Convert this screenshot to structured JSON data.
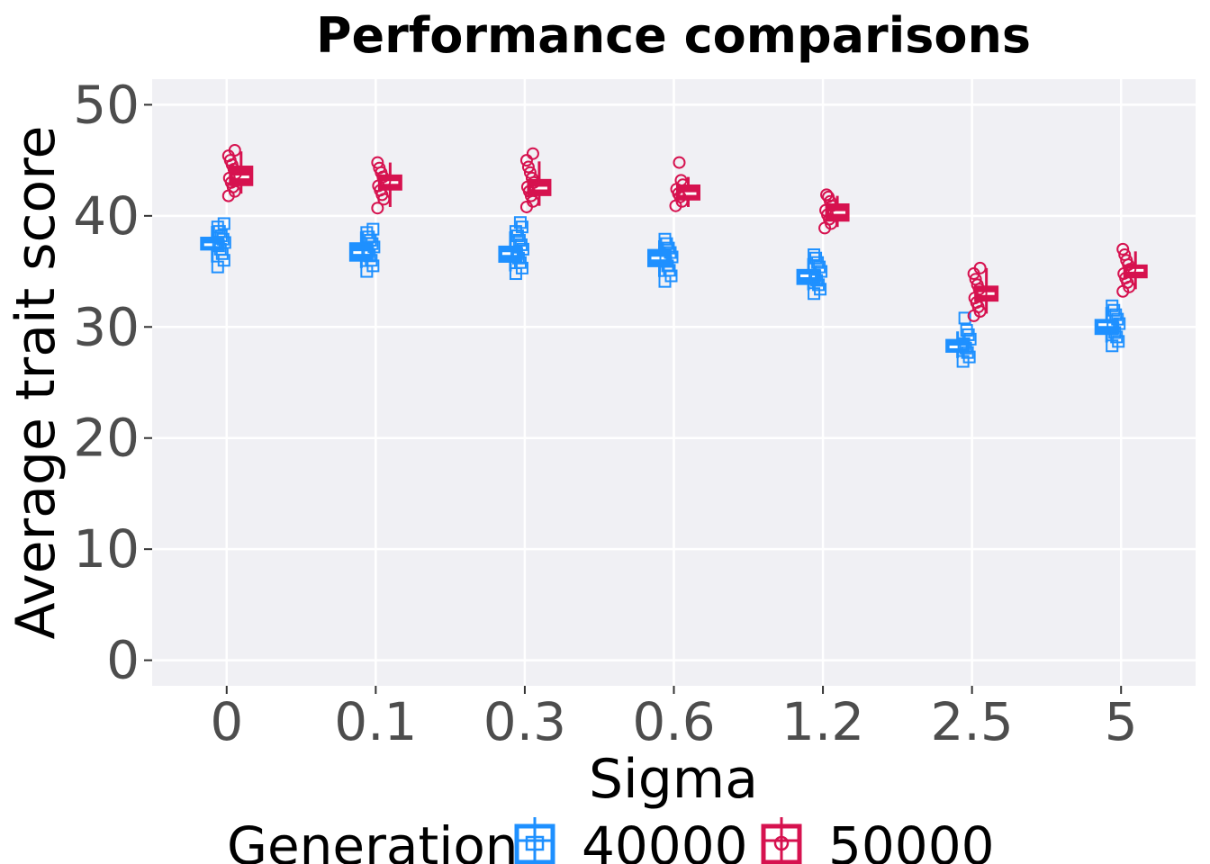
{
  "chart_data": {
    "type": "box",
    "title": "Performance comparisons",
    "xlabel": "Sigma",
    "ylabel": "Average trait score",
    "categories": [
      "0",
      "0.1",
      "0.3",
      "0.6",
      "1.2",
      "2.5",
      "5"
    ],
    "y_ticks": [
      "0",
      "10",
      "20",
      "30",
      "40",
      "50"
    ],
    "ylim": [
      -2.3,
      52.3
    ],
    "grid": true,
    "legend": {
      "title": "Generation",
      "position": "bottom",
      "entries": [
        "40000",
        "50000"
      ]
    },
    "series": [
      {
        "name": "40000",
        "color": "#1e90ff",
        "point_shape": "square",
        "boxes": [
          {
            "min": 35.8,
            "q1": 37.0,
            "median": 37.4,
            "q3": 38.0,
            "max": 39.1
          },
          {
            "min": 35.3,
            "q1": 36.0,
            "median": 36.7,
            "q3": 37.5,
            "max": 38.6
          },
          {
            "min": 35.0,
            "q1": 35.9,
            "median": 36.6,
            "q3": 37.2,
            "max": 38.6
          },
          {
            "min": 34.5,
            "q1": 35.5,
            "median": 36.2,
            "q3": 36.9,
            "max": 37.8
          },
          {
            "min": 33.3,
            "q1": 33.9,
            "median": 34.6,
            "q3": 35.1,
            "max": 36.2
          },
          {
            "min": 27.2,
            "q1": 27.8,
            "median": 28.2,
            "q3": 28.8,
            "max": 29.6
          },
          {
            "min": 28.6,
            "q1": 29.4,
            "median": 30.2,
            "q3": 30.6,
            "max": 31.8
          }
        ],
        "points": [
          [
            35.4,
            36.0,
            36.6,
            37.0,
            37.3,
            37.6,
            37.9,
            38.2,
            38.6,
            39.0,
            39.3
          ],
          [
            35.0,
            35.5,
            36.0,
            36.4,
            36.8,
            37.2,
            37.5,
            37.8,
            38.1,
            38.5,
            38.8
          ],
          [
            34.8,
            35.3,
            35.8,
            36.2,
            36.6,
            37.0,
            37.4,
            37.8,
            38.2,
            38.6,
            39.0,
            39.4
          ],
          [
            34.1,
            34.6,
            35.1,
            35.5,
            35.9,
            36.3,
            36.7,
            37.1,
            37.5,
            37.9
          ],
          [
            33.0,
            33.4,
            33.8,
            34.2,
            34.6,
            35.0,
            35.4,
            35.8,
            36.2,
            36.5
          ],
          [
            26.9,
            27.3,
            27.7,
            28.1,
            28.5,
            28.9,
            29.3,
            29.7,
            30.8
          ],
          [
            28.3,
            28.7,
            29.1,
            29.5,
            29.9,
            30.3,
            30.7,
            31.1,
            31.5,
            31.9
          ]
        ]
      },
      {
        "name": "50000",
        "color": "#d6124f",
        "point_shape": "circle",
        "boxes": [
          {
            "min": 42.0,
            "q1": 42.8,
            "median": 43.5,
            "q3": 44.4,
            "max": 45.8
          },
          {
            "min": 40.8,
            "q1": 42.4,
            "median": 43.0,
            "q3": 43.6,
            "max": 44.8
          },
          {
            "min": 40.9,
            "q1": 41.9,
            "median": 42.5,
            "q3": 43.2,
            "max": 44.9
          },
          {
            "min": 40.8,
            "q1": 41.5,
            "median": 42.0,
            "q3": 42.7,
            "max": 43.5
          },
          {
            "min": 39.0,
            "q1": 39.6,
            "median": 40.3,
            "q3": 41.0,
            "max": 41.8
          },
          {
            "min": 31.2,
            "q1": 32.4,
            "median": 33.0,
            "q3": 33.6,
            "max": 35.3
          },
          {
            "min": 33.4,
            "q1": 34.5,
            "median": 35.1,
            "q3": 35.5,
            "max": 36.8
          }
        ],
        "points": [
          [
            41.8,
            42.2,
            42.6,
            43.0,
            43.4,
            43.8,
            44.2,
            44.6,
            45.0,
            45.4,
            45.9
          ],
          [
            40.7,
            41.5,
            41.9,
            42.3,
            42.7,
            43.1,
            43.5,
            43.9,
            44.3,
            44.8
          ],
          [
            40.8,
            41.3,
            41.8,
            42.2,
            42.6,
            43.0,
            43.4,
            43.9,
            44.4,
            45.0,
            45.6
          ],
          [
            40.9,
            41.3,
            41.7,
            42.0,
            42.4,
            42.8,
            43.2,
            44.8
          ],
          [
            38.9,
            39.3,
            39.7,
            40.1,
            40.5,
            40.9,
            41.3,
            41.7,
            41.9
          ],
          [
            31.0,
            31.4,
            31.8,
            32.2,
            32.6,
            33.0,
            33.4,
            33.8,
            34.3,
            34.8,
            35.3
          ],
          [
            33.2,
            33.6,
            34.0,
            34.4,
            34.8,
            35.2,
            35.6,
            36.0,
            36.5,
            37.0
          ]
        ]
      }
    ]
  }
}
